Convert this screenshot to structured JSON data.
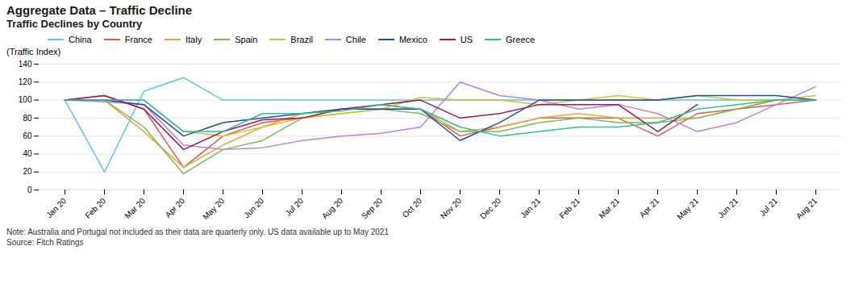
{
  "chart_data": {
    "type": "line",
    "title": "Aggregate Data – Traffic Decline",
    "subtitle": "Traffic Declines by Country",
    "y_label": "(Traffic Index)",
    "annotations": [
      "Note: Australia  and Portugal not included as their data are quarterly only. US data available up to May 2021",
      "Source: Fitch Ratings"
    ],
    "categories": [
      "Jan 20",
      "Feb 20",
      "Mar 20",
      "Apr 20",
      "May 20",
      "Jun 20",
      "Jul 20",
      "Aug 20",
      "Sep 20",
      "Oct 20",
      "Nov 20",
      "Dec 20",
      "Jan 21",
      "Feb 21",
      "Mar 21",
      "Apr 21",
      "May 21",
      "Jun 21",
      "Jul 21",
      "Aug 21"
    ],
    "ylim": [
      0,
      140
    ],
    "yticks": [
      0,
      20,
      40,
      60,
      80,
      100,
      120,
      140
    ],
    "grid": true,
    "legend": "top",
    "series": [
      {
        "name": "China",
        "color": "#5BC8E8",
        "values": [
          100,
          20,
          110,
          125,
          100,
          100,
          100,
          100,
          100,
          100,
          100,
          100,
          100,
          100,
          100,
          100,
          100,
          100,
          100,
          100
        ]
      },
      {
        "name": "France",
        "color": "#E05B4B",
        "values": [
          100,
          105,
          90,
          25,
          60,
          75,
          80,
          90,
          90,
          90,
          60,
          70,
          80,
          80,
          80,
          60,
          85,
          90,
          95,
          100
        ]
      },
      {
        "name": "Italy",
        "color": "#E8A838",
        "values": [
          100,
          100,
          65,
          25,
          50,
          70,
          85,
          90,
          95,
          90,
          65,
          70,
          80,
          85,
          80,
          80,
          80,
          90,
          100,
          100
        ]
      },
      {
        "name": "Spain",
        "color": "#7ABD4E",
        "values": [
          100,
          100,
          70,
          18,
          45,
          55,
          80,
          85,
          90,
          85,
          65,
          65,
          75,
          80,
          75,
          75,
          80,
          90,
          100,
          100
        ]
      },
      {
        "name": "Brazil",
        "color": "#D4C12A",
        "values": [
          100,
          100,
          100,
          65,
          60,
          70,
          80,
          85,
          90,
          103,
          100,
          100,
          95,
          100,
          105,
          100,
          105,
          100,
          100,
          105
        ]
      },
      {
        "name": "Chile",
        "color": "#C07FD8",
        "values": [
          100,
          98,
          95,
          50,
          45,
          47,
          55,
          60,
          63,
          70,
          120,
          105,
          100,
          90,
          95,
          85,
          65,
          75,
          95,
          115
        ]
      },
      {
        "name": "Mexico",
        "color": "#1B4FA8",
        "values": [
          100,
          100,
          95,
          60,
          75,
          80,
          85,
          90,
          90,
          90,
          55,
          75,
          100,
          100,
          100,
          100,
          105,
          105,
          105,
          100
        ]
      },
      {
        "name": "US",
        "color": "#9B1A5A",
        "values": [
          100,
          105,
          90,
          45,
          65,
          78,
          80,
          90,
          95,
          100,
          80,
          85,
          95,
          95,
          95,
          65,
          95,
          null,
          null,
          null
        ]
      },
      {
        "name": "Greece",
        "color": "#2BBFA0",
        "values": [
          100,
          100,
          100,
          65,
          65,
          85,
          85,
          88,
          95,
          90,
          70,
          60,
          65,
          70,
          70,
          75,
          90,
          95,
          100,
          100
        ]
      }
    ]
  }
}
